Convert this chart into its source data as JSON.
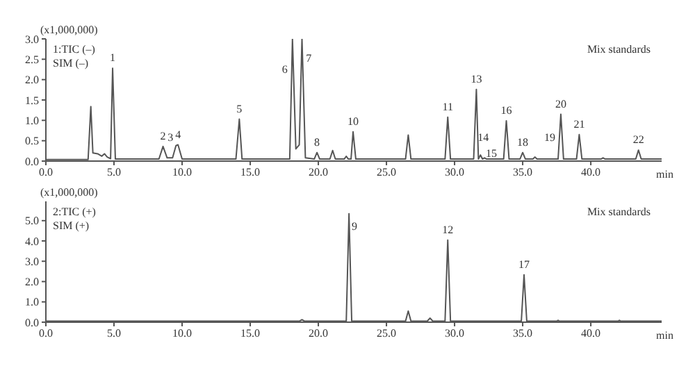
{
  "chart_data": [
    {
      "type": "line",
      "ylabel": "(x1,000,000)",
      "xlabel": "min",
      "marker": "none",
      "line_style": "solid",
      "xlim": [
        0,
        45.2
      ],
      "xticks": [
        {
          "value": 0,
          "label": "0.0"
        },
        {
          "value": 5,
          "label": "5.0"
        },
        {
          "value": 10,
          "label": "10.0"
        },
        {
          "value": 15,
          "label": "15.0"
        },
        {
          "value": 20,
          "label": "20.0"
        },
        {
          "value": 25,
          "label": "25.0"
        },
        {
          "value": 30,
          "label": "30.0"
        },
        {
          "value": 35,
          "label": "35.0"
        },
        {
          "value": 40,
          "label": "40.0"
        }
      ],
      "ylim": [
        0,
        3.0
      ],
      "yticks": [
        {
          "value": 0,
          "label": "0.0"
        },
        {
          "value": 0.5,
          "label": "0.5"
        },
        {
          "value": 1,
          "label": "1.0"
        },
        {
          "value": 1.5,
          "label": "1.5"
        },
        {
          "value": 2,
          "label": "2.0"
        },
        {
          "value": 2.5,
          "label": "2.5"
        },
        {
          "value": 3,
          "label": "3.0"
        }
      ],
      "series": [
        {
          "color": "#555555",
          "x": [
            0,
            3.1,
            3.3,
            3.45,
            3.8,
            4.1,
            4.3,
            4.5,
            4.75,
            4.9,
            5.1,
            8.3,
            8.6,
            8.9,
            9.3,
            9.55,
            9.7,
            10.0,
            13.95,
            14.2,
            14.4,
            17.9,
            18.05,
            18.1,
            18.35,
            18.6,
            18.8,
            19.05,
            19.7,
            19.9,
            20.1,
            20.85,
            21.05,
            21.25,
            21.9,
            22.05,
            22.2,
            22.4,
            22.55,
            22.75,
            26.4,
            26.6,
            26.8,
            29.3,
            29.5,
            29.7,
            31.4,
            31.6,
            31.75,
            31.9,
            32.05,
            32.2,
            32.35,
            33.6,
            33.8,
            34.0,
            34.8,
            35.0,
            35.2,
            35.75,
            35.9,
            36.05,
            37.6,
            37.7,
            37.8,
            38.0,
            38.95,
            39.15,
            39.35,
            40.75,
            40.9,
            41.05,
            43.3,
            43.5,
            43.7,
            45.2
          ],
          "values": [
            0.04,
            0.04,
            1.34,
            0.2,
            0.18,
            0.12,
            0.18,
            0.1,
            0.06,
            2.28,
            0.05,
            0.05,
            0.36,
            0.08,
            0.08,
            0.38,
            0.4,
            0.05,
            0.05,
            1.03,
            0.05,
            0.05,
            2.26,
            3.0,
            0.3,
            0.4,
            3.0,
            0.08,
            0.05,
            0.21,
            0.05,
            0.05,
            0.26,
            0.05,
            0.05,
            0.12,
            0.05,
            0.05,
            0.72,
            0.05,
            0.05,
            0.64,
            0.05,
            0.05,
            1.08,
            0.05,
            0.05,
            1.76,
            0.05,
            0.15,
            0.05,
            0.08,
            0.05,
            0.05,
            0.99,
            0.05,
            0.05,
            0.21,
            0.05,
            0.05,
            0.1,
            0.05,
            0.05,
            0.6,
            1.15,
            0.05,
            0.05,
            0.65,
            0.05,
            0.05,
            0.08,
            0.05,
            0.05,
            0.27,
            0.05,
            0.05
          ]
        }
      ],
      "annotations": [
        "1:TIC (–)",
        "SIM (–)",
        "Mix standards",
        {
          "text": "1",
          "x": 4.9,
          "y": 2.28
        },
        {
          "text": "2",
          "x": 8.6,
          "y": 0.36
        },
        {
          "text": "3",
          "x": 9.15,
          "y": 0.49
        },
        {
          "text": "4",
          "x": 9.7,
          "y": 0.4
        },
        {
          "text": "5",
          "x": 14.2,
          "y": 1.03
        },
        {
          "text": "6",
          "x": 18.05,
          "y": 2.26
        },
        {
          "text": "7",
          "x": 19.3,
          "y": 2.43
        },
        {
          "text": "8",
          "x": 19.9,
          "y": 0.21
        },
        {
          "text": "10",
          "x": 22.55,
          "y": 0.72
        },
        {
          "text": "11",
          "x": 29.5,
          "y": 1.08
        },
        {
          "text": "13",
          "x": 31.6,
          "y": 1.76
        },
        {
          "text": "14",
          "x": 32.1,
          "y": 0.49
        },
        {
          "text": "15",
          "x": 32.7,
          "y": 0.1
        },
        {
          "text": "16",
          "x": 33.8,
          "y": 0.99
        },
        {
          "text": "18",
          "x": 35.0,
          "y": 0.21
        },
        {
          "text": "19",
          "x": 37.7,
          "y": 0.6
        },
        {
          "text": "20",
          "x": 37.8,
          "y": 1.15
        },
        {
          "text": "21",
          "x": 39.15,
          "y": 0.65
        },
        {
          "text": "22",
          "x": 43.5,
          "y": 0.27
        }
      ]
    },
    {
      "type": "line",
      "ylabel": "(x1,000,000)",
      "xlabel": "min",
      "marker": "none",
      "line_style": "solid",
      "xlim": [
        0,
        45.2
      ],
      "xticks": [
        {
          "value": 0,
          "label": "0.0"
        },
        {
          "value": 5,
          "label": "5.0"
        },
        {
          "value": 10,
          "label": "10.0"
        },
        {
          "value": 15,
          "label": "15.0"
        },
        {
          "value": 20,
          "label": "20.0"
        },
        {
          "value": 25,
          "label": "25.0"
        },
        {
          "value": 30,
          "label": "30.0"
        },
        {
          "value": 35,
          "label": "35.0"
        },
        {
          "value": 40,
          "label": "40.0"
        }
      ],
      "ylim": [
        0,
        5.95
      ],
      "yticks": [
        {
          "value": 0,
          "label": "0.0"
        },
        {
          "value": 1,
          "label": "1.0"
        },
        {
          "value": 2,
          "label": "2.0"
        },
        {
          "value": 3,
          "label": "3.0"
        },
        {
          "value": 4,
          "label": "4.0"
        },
        {
          "value": 5,
          "label": "5.0"
        }
      ],
      "series": [
        {
          "color": "#555555",
          "x": [
            0,
            18.6,
            18.8,
            19.0,
            22.05,
            22.25,
            22.45,
            26.4,
            26.6,
            26.8,
            28.0,
            28.2,
            28.4,
            29.3,
            29.5,
            29.7,
            34.9,
            35.1,
            35.3,
            37.5,
            37.6,
            37.7,
            42.0,
            42.1,
            42.2,
            45.2
          ],
          "values": [
            0.05,
            0.05,
            0.12,
            0.05,
            0.05,
            5.34,
            0.05,
            0.05,
            0.55,
            0.05,
            0.05,
            0.2,
            0.05,
            0.05,
            4.04,
            0.05,
            0.05,
            2.33,
            0.05,
            0.05,
            0.09,
            0.05,
            0.05,
            0.09,
            0.05,
            0.05
          ]
        }
      ],
      "annotations": [
        "2:TIC (+)",
        "SIM (+)",
        "Mix standards",
        {
          "text": "9",
          "x": 22.65,
          "y": 4.54
        },
        {
          "text": "12",
          "x": 29.5,
          "y": 4.04
        },
        {
          "text": "17",
          "x": 35.1,
          "y": 2.33
        }
      ]
    }
  ]
}
